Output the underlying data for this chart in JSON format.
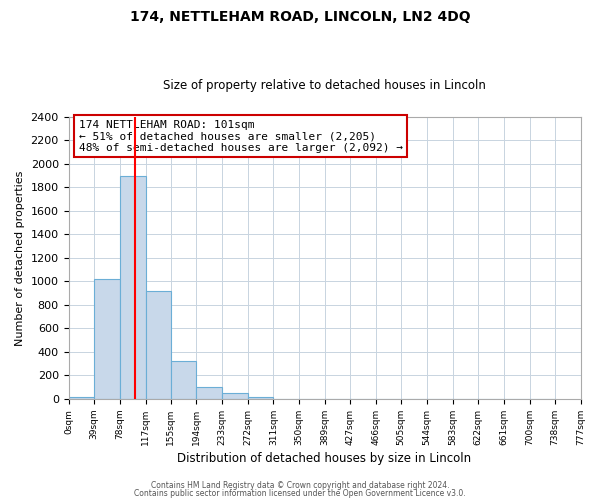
{
  "title": "174, NETTLEHAM ROAD, LINCOLN, LN2 4DQ",
  "subtitle": "Size of property relative to detached houses in Lincoln",
  "xlabel": "Distribution of detached houses by size in Lincoln",
  "ylabel": "Number of detached properties",
  "bar_values": [
    20,
    1020,
    1900,
    920,
    320,
    105,
    50,
    20,
    0,
    0,
    0,
    0,
    0,
    0,
    0,
    0,
    0,
    0,
    0
  ],
  "bar_left_edges": [
    0,
    39,
    78,
    117,
    155,
    194,
    233,
    272,
    311,
    350,
    389,
    427,
    466,
    505,
    544,
    583,
    622,
    661,
    700
  ],
  "tick_labels": [
    "0sqm",
    "39sqm",
    "78sqm",
    "117sqm",
    "155sqm",
    "194sqm",
    "233sqm",
    "272sqm",
    "311sqm",
    "350sqm",
    "389sqm",
    "427sqm",
    "466sqm",
    "505sqm",
    "544sqm",
    "583sqm",
    "622sqm",
    "661sqm",
    "700sqm",
    "738sqm",
    "777sqm"
  ],
  "bin_width": 39,
  "bar_color": "#c8d8ea",
  "bar_edge_color": "#6baed6",
  "red_line_x": 101,
  "xlim": [
    0,
    777
  ],
  "ylim": [
    0,
    2400
  ],
  "yticks": [
    0,
    200,
    400,
    600,
    800,
    1000,
    1200,
    1400,
    1600,
    1800,
    2000,
    2200,
    2400
  ],
  "annotation_line1": "174 NETTLEHAM ROAD: 101sqm",
  "annotation_line2": "← 51% of detached houses are smaller (2,205)",
  "annotation_line3": "48% of semi-detached houses are larger (2,092) →",
  "annotation_box_facecolor": "#ffffff",
  "annotation_box_edge": "#cc0000",
  "footer_text1": "Contains HM Land Registry data © Crown copyright and database right 2024.",
  "footer_text2": "Contains public sector information licensed under the Open Government Licence v3.0.",
  "background_color": "#ffffff",
  "grid_color": "#c8d4e0",
  "spine_color": "#aaaaaa",
  "title_fontsize": 10,
  "subtitle_fontsize": 8.5,
  "ylabel_fontsize": 8,
  "xlabel_fontsize": 8.5,
  "tick_fontsize_x": 6.5,
  "tick_fontsize_y": 8,
  "annotation_fontsize": 8,
  "footer_fontsize": 5.5
}
